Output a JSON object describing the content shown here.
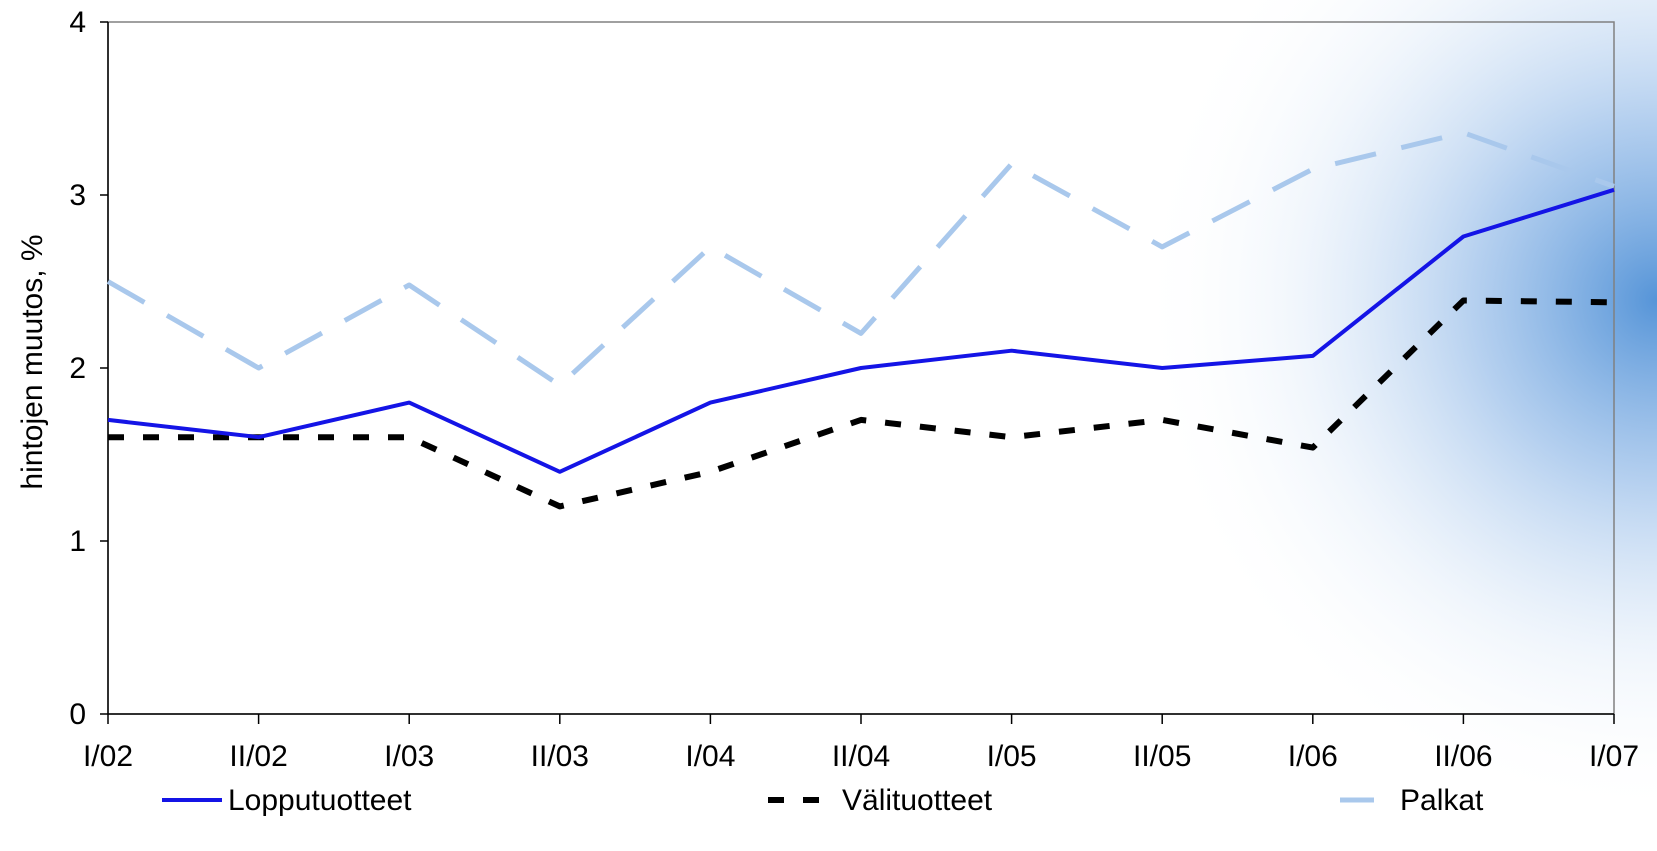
{
  "chart_data": {
    "type": "line",
    "categories": [
      "I/02",
      "II/02",
      "I/03",
      "II/03",
      "I/04",
      "II/04",
      "I/05",
      "II/05",
      "I/06",
      "II/06",
      "I/07"
    ],
    "series": [
      {
        "name": "Lopputuotteet",
        "color": "#1414e6",
        "style": "solid",
        "values": [
          1.7,
          1.6,
          1.8,
          1.4,
          1.8,
          2.0,
          2.1,
          2.0,
          2.07,
          2.76,
          3.03
        ]
      },
      {
        "name": "Välituotteet",
        "color": "#000000",
        "style": "dotted",
        "values": [
          1.6,
          1.6,
          1.6,
          1.2,
          1.4,
          1.7,
          1.6,
          1.7,
          1.54,
          2.39,
          2.38
        ]
      },
      {
        "name": "Palkat",
        "color": "#a9c8ec",
        "style": "dashed",
        "values": [
          2.5,
          2.0,
          2.48,
          1.9,
          2.7,
          2.2,
          3.18,
          2.7,
          3.15,
          3.36,
          3.05
        ]
      }
    ],
    "title": "",
    "xlabel": "",
    "ylabel": "hintojen muutos, %",
    "ylim": [
      0,
      4
    ],
    "yticks": [
      "0",
      "1",
      "2",
      "3",
      "4"
    ],
    "grid": false,
    "legend_position": "bottom"
  }
}
